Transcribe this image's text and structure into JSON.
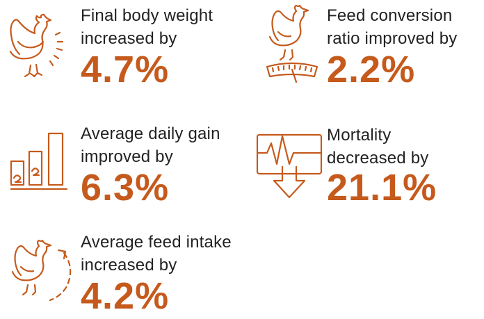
{
  "accent_color": "#c55a1c",
  "stats": [
    {
      "id": "body-weight",
      "icon": "chicken-icon",
      "label_line1": "Final body weight",
      "label_line2": "increased by",
      "value": "4.7%"
    },
    {
      "id": "fcr",
      "icon": "chicken-on-scale-icon",
      "label_line1": "Feed conversion",
      "label_line2": "ratio improved by",
      "value": "2.2%"
    },
    {
      "id": "adg",
      "icon": "bar-growth-icon",
      "label_line1": "Average daily gain",
      "label_line2": "improved by",
      "value": "6.3%"
    },
    {
      "id": "mortality",
      "icon": "heartbeat-down-arrow-icon",
      "label_line1": "Mortality",
      "label_line2": "decreased by",
      "value": "21.1%"
    },
    {
      "id": "feed-intake",
      "icon": "chicken-cycle-arrow-icon",
      "label_line1": "Average feed intake",
      "label_line2": "increased by",
      "value": "4.2%"
    }
  ]
}
